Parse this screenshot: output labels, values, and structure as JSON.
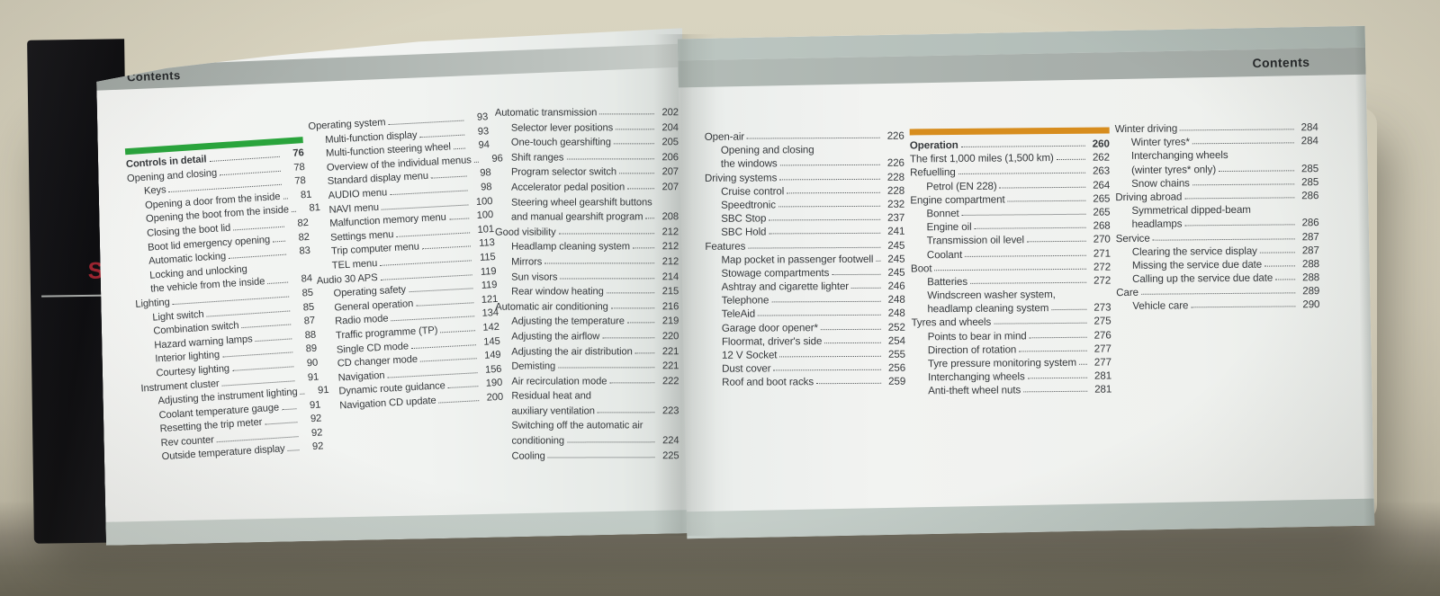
{
  "book": {
    "cover_text": "SL",
    "colors": {
      "green_section_bar": "#2aa43c",
      "orange_section_bar": "#d78d1e",
      "header_band": "#a8afab",
      "cover_red_text": "#9e2430"
    },
    "left_page": {
      "header": "Contents",
      "columns": [
        [
          {
            "label": "Controls in detail",
            "page": "76",
            "bold": true,
            "bar": "green"
          },
          {
            "label": "Opening and closing",
            "page": "78"
          },
          {
            "label": "Keys",
            "page": "78",
            "indent": 1
          },
          {
            "label": "Opening a door from the inside",
            "page": "81",
            "indent": 1
          },
          {
            "label": "Opening the boot from the inside",
            "page": "81",
            "indent": 1
          },
          {
            "label": "Closing the boot lid",
            "page": "82",
            "indent": 1
          },
          {
            "label": "Boot lid emergency opening",
            "page": "82",
            "indent": 1
          },
          {
            "label": "Automatic locking",
            "page": "83",
            "indent": 1
          },
          {
            "label": "Locking and unlocking",
            "page": "",
            "indent": 1
          },
          {
            "label": "the vehicle from the inside",
            "page": "84",
            "indent": 1
          },
          {
            "label": "Lighting",
            "page": "85"
          },
          {
            "label": "Light switch",
            "page": "85",
            "indent": 1
          },
          {
            "label": "Combination switch",
            "page": "87",
            "indent": 1
          },
          {
            "label": "Hazard warning lamps",
            "page": "88",
            "indent": 1
          },
          {
            "label": "Interior lighting",
            "page": "89",
            "indent": 1
          },
          {
            "label": "Courtesy lighting",
            "page": "90",
            "indent": 1
          },
          {
            "label": "Instrument cluster",
            "page": "91"
          },
          {
            "label": "Adjusting the instrument lighting",
            "page": "91",
            "indent": 1
          },
          {
            "label": "Coolant temperature gauge",
            "page": "91",
            "indent": 1
          },
          {
            "label": "Resetting the trip meter",
            "page": "92",
            "indent": 1
          },
          {
            "label": "Rev counter",
            "page": "92",
            "indent": 1
          },
          {
            "label": "Outside temperature display",
            "page": "92",
            "indent": 1
          }
        ],
        [
          {
            "label": "Operating system",
            "page": "93"
          },
          {
            "label": "Multi-function display",
            "page": "93",
            "indent": 1
          },
          {
            "label": "Multi-function steering wheel",
            "page": "94",
            "indent": 1
          },
          {
            "label": "Overview of the individual menus",
            "page": "96",
            "indent": 1
          },
          {
            "label": "Standard display menu",
            "page": "98",
            "indent": 1
          },
          {
            "label": "AUDIO menu",
            "page": "98",
            "indent": 1
          },
          {
            "label": "NAVI menu",
            "page": "100",
            "indent": 1
          },
          {
            "label": "Malfunction memory menu",
            "page": "100",
            "indent": 1
          },
          {
            "label": "Settings menu",
            "page": "101",
            "indent": 1
          },
          {
            "label": "Trip computer menu",
            "page": "113",
            "indent": 1
          },
          {
            "label": "TEL menu",
            "page": "115",
            "indent": 1
          },
          {
            "label": "Audio 30 APS",
            "page": "119"
          },
          {
            "label": "Operating safety",
            "page": "119",
            "indent": 1
          },
          {
            "label": "General operation",
            "page": "121",
            "indent": 1
          },
          {
            "label": "Radio mode",
            "page": "134",
            "indent": 1
          },
          {
            "label": "Traffic programme (TP)",
            "page": "142",
            "indent": 1
          },
          {
            "label": "Single CD mode",
            "page": "145",
            "indent": 1
          },
          {
            "label": "CD changer mode",
            "page": "149",
            "indent": 1
          },
          {
            "label": "Navigation",
            "page": "156",
            "indent": 1
          },
          {
            "label": "Dynamic route guidance",
            "page": "190",
            "indent": 1
          },
          {
            "label": "Navigation CD update",
            "page": "200",
            "indent": 1
          }
        ],
        [
          {
            "label": "Automatic transmission",
            "page": "202"
          },
          {
            "label": "Selector lever positions",
            "page": "204",
            "indent": 1
          },
          {
            "label": "One-touch gearshifting",
            "page": "205",
            "indent": 1
          },
          {
            "label": "Shift ranges",
            "page": "206",
            "indent": 1
          },
          {
            "label": "Program selector switch",
            "page": "207",
            "indent": 1
          },
          {
            "label": "Accelerator pedal position",
            "page": "207",
            "indent": 1
          },
          {
            "label": "Steering wheel gearshift buttons",
            "page": "",
            "indent": 1
          },
          {
            "label": "and manual gearshift program",
            "page": "208",
            "indent": 1
          },
          {
            "label": "Good visibility",
            "page": "212"
          },
          {
            "label": "Headlamp cleaning system",
            "page": "212",
            "indent": 1
          },
          {
            "label": "Mirrors",
            "page": "212",
            "indent": 1
          },
          {
            "label": "Sun visors",
            "page": "214",
            "indent": 1
          },
          {
            "label": "Rear window heating",
            "page": "215",
            "indent": 1
          },
          {
            "label": "Automatic air conditioning",
            "page": "216"
          },
          {
            "label": "Adjusting the temperature",
            "page": "219",
            "indent": 1
          },
          {
            "label": "Adjusting the airflow",
            "page": "220",
            "indent": 1
          },
          {
            "label": "Adjusting the air distribution",
            "page": "221",
            "indent": 1
          },
          {
            "label": "Demisting",
            "page": "221",
            "indent": 1
          },
          {
            "label": "Air recirculation mode",
            "page": "222",
            "indent": 1
          },
          {
            "label": "Residual heat and",
            "page": "",
            "indent": 1
          },
          {
            "label": "auxiliary ventilation",
            "page": "223",
            "indent": 1
          },
          {
            "label": "Switching off the automatic air",
            "page": "",
            "indent": 1
          },
          {
            "label": "conditioning",
            "page": "224",
            "indent": 1
          },
          {
            "label": "Cooling",
            "page": "225",
            "indent": 1
          }
        ]
      ]
    },
    "right_page": {
      "header": "Contents",
      "columns": [
        [
          {
            "label": "Open-air",
            "page": "226"
          },
          {
            "label": "Opening and closing",
            "page": "",
            "indent": 1
          },
          {
            "label": "the windows",
            "page": "226",
            "indent": 1
          },
          {
            "label": "Driving systems",
            "page": "228"
          },
          {
            "label": "Cruise control",
            "page": "228",
            "indent": 1
          },
          {
            "label": "Speedtronic",
            "page": "232",
            "indent": 1
          },
          {
            "label": "SBC Stop",
            "page": "237",
            "indent": 1
          },
          {
            "label": "SBC Hold",
            "page": "241",
            "indent": 1
          },
          {
            "label": "Features",
            "page": "245"
          },
          {
            "label": "Map pocket in passenger footwell",
            "page": "245",
            "indent": 1
          },
          {
            "label": "Stowage compartments",
            "page": "245",
            "indent": 1
          },
          {
            "label": "Ashtray and cigarette lighter",
            "page": "246",
            "indent": 1
          },
          {
            "label": "Telephone",
            "page": "248",
            "indent": 1
          },
          {
            "label": "TeleAid",
            "page": "248",
            "indent": 1
          },
          {
            "label": "Garage door opener*",
            "page": "252",
            "indent": 1
          },
          {
            "label": "Floormat, driver's side",
            "page": "254",
            "indent": 1
          },
          {
            "label": "12 V Socket",
            "page": "255",
            "indent": 1
          },
          {
            "label": "Dust cover",
            "page": "256",
            "indent": 1
          },
          {
            "label": "Roof and boot racks",
            "page": "259",
            "indent": 1
          }
        ],
        [
          {
            "label": "Operation",
            "page": "260",
            "bold": true,
            "bar": "orange"
          },
          {
            "label": "The first 1,000 miles (1,500 km)",
            "page": "262"
          },
          {
            "label": "Refuelling",
            "page": "263"
          },
          {
            "label": "Petrol (EN 228)",
            "page": "264",
            "indent": 1
          },
          {
            "label": "Engine compartment",
            "page": "265"
          },
          {
            "label": "Bonnet",
            "page": "265",
            "indent": 1
          },
          {
            "label": "Engine oil",
            "page": "268",
            "indent": 1
          },
          {
            "label": "Transmission oil level",
            "page": "270",
            "indent": 1
          },
          {
            "label": "Coolant",
            "page": "271",
            "indent": 1
          },
          {
            "label": "Boot",
            "page": "272"
          },
          {
            "label": "Batteries",
            "page": "272",
            "indent": 1
          },
          {
            "label": "Windscreen washer system,",
            "page": "",
            "indent": 1
          },
          {
            "label": "headlamp cleaning system",
            "page": "273",
            "indent": 1
          },
          {
            "label": "Tyres and wheels",
            "page": "275"
          },
          {
            "label": "Points to bear in mind",
            "page": "276",
            "indent": 1
          },
          {
            "label": "Direction of rotation",
            "page": "277",
            "indent": 1
          },
          {
            "label": "Tyre pressure monitoring system",
            "page": "277",
            "indent": 1
          },
          {
            "label": "Interchanging wheels",
            "page": "281",
            "indent": 1
          },
          {
            "label": "Anti-theft wheel nuts",
            "page": "281",
            "indent": 1
          }
        ],
        [
          {
            "label": "Winter driving",
            "page": "284"
          },
          {
            "label": "Winter tyres*",
            "page": "284",
            "indent": 1
          },
          {
            "label": "Interchanging wheels",
            "page": "",
            "indent": 1
          },
          {
            "label": "(winter tyres* only)",
            "page": "285",
            "indent": 1
          },
          {
            "label": "Snow chains",
            "page": "285",
            "indent": 1
          },
          {
            "label": "Driving abroad",
            "page": "286"
          },
          {
            "label": "Symmetrical dipped-beam",
            "page": "",
            "indent": 1
          },
          {
            "label": "headlamps",
            "page": "286",
            "indent": 1
          },
          {
            "label": "Service",
            "page": "287"
          },
          {
            "label": "Clearing the service display",
            "page": "287",
            "indent": 1
          },
          {
            "label": "Missing the service due date",
            "page": "288",
            "indent": 1
          },
          {
            "label": "Calling up the service due date",
            "page": "288",
            "indent": 1
          },
          {
            "label": "Care",
            "page": "289"
          },
          {
            "label": "Vehicle care",
            "page": "290",
            "indent": 1
          }
        ]
      ]
    }
  }
}
